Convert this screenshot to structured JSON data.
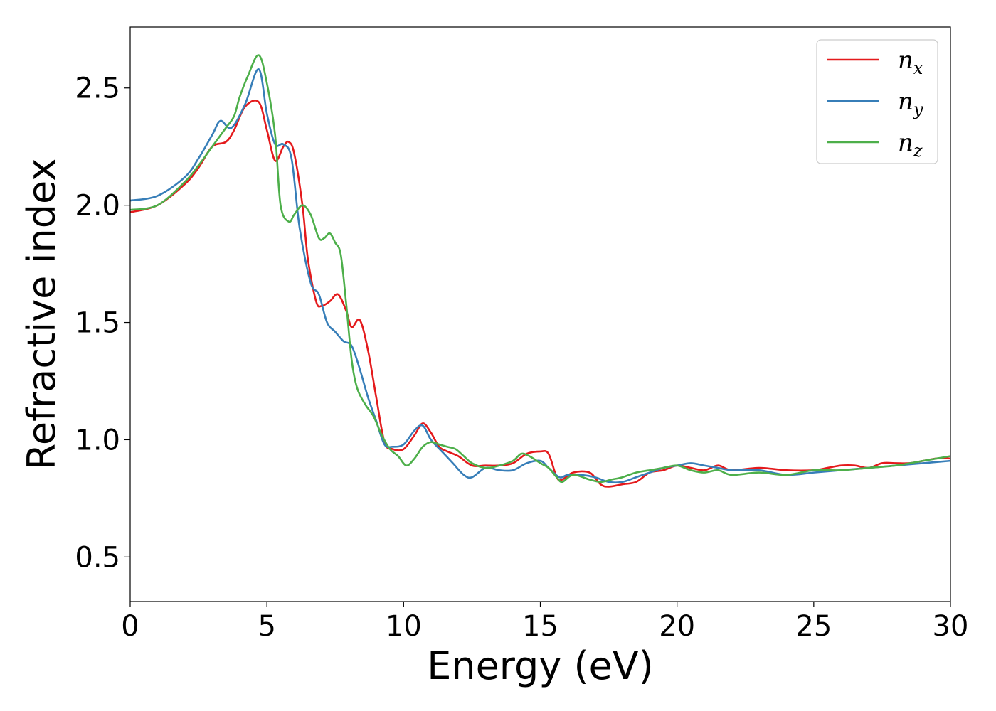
{
  "chart_data": {
    "type": "line",
    "title": "",
    "xlabel": "Energy (eV)",
    "ylabel": "Refractive index",
    "xlim": [
      0,
      30
    ],
    "ylim": [
      0.31,
      2.76
    ],
    "xticks": [
      0,
      5,
      10,
      15,
      20,
      25,
      30
    ],
    "yticks": [
      0.5,
      1.0,
      1.5,
      2.0,
      2.5
    ],
    "xtick_labels": [
      "0",
      "5",
      "10",
      "15",
      "20",
      "25",
      "30"
    ],
    "ytick_labels": [
      "0.5",
      "1.0",
      "1.5",
      "2.0",
      "2.5"
    ],
    "grid": false,
    "legend_position": "top-right",
    "series": [
      {
        "name": "n",
        "subscript": "x",
        "color": "#e41a1c",
        "x": [
          0,
          1,
          2,
          2.5,
          3,
          3.5,
          3.8,
          4.2,
          4.7,
          5.0,
          5.3,
          5.6,
          5.8,
          6.0,
          6.3,
          6.5,
          6.8,
          7.0,
          7.3,
          7.6,
          7.9,
          8.1,
          8.4,
          8.7,
          9.0,
          9.3,
          9.6,
          10.0,
          10.4,
          10.7,
          11.0,
          11.3,
          11.6,
          12.0,
          12.5,
          13.0,
          13.5,
          14.0,
          14.5,
          15.0,
          15.3,
          15.6,
          15.8,
          16.2,
          16.8,
          17.2,
          17.5,
          18.0,
          18.5,
          19.0,
          19.5,
          20.0,
          20.5,
          21.0,
          21.5,
          22.0,
          23.0,
          24.0,
          25.0,
          25.5,
          26.0,
          26.5,
          27.0,
          27.5,
          28.0,
          28.5,
          29.0,
          29.5,
          30.0
        ],
        "y": [
          1.97,
          2.0,
          2.09,
          2.16,
          2.25,
          2.27,
          2.32,
          2.42,
          2.44,
          2.32,
          2.19,
          2.25,
          2.27,
          2.22,
          2.0,
          1.77,
          1.59,
          1.57,
          1.59,
          1.62,
          1.55,
          1.48,
          1.51,
          1.38,
          1.18,
          0.99,
          0.96,
          0.96,
          1.02,
          1.07,
          1.03,
          0.97,
          0.95,
          0.93,
          0.89,
          0.89,
          0.89,
          0.9,
          0.94,
          0.95,
          0.94,
          0.84,
          0.83,
          0.86,
          0.86,
          0.81,
          0.8,
          0.81,
          0.82,
          0.86,
          0.87,
          0.89,
          0.88,
          0.87,
          0.89,
          0.87,
          0.88,
          0.87,
          0.87,
          0.88,
          0.89,
          0.89,
          0.88,
          0.9,
          0.9,
          0.9,
          0.91,
          0.92,
          0.92
        ]
      },
      {
        "name": "n",
        "subscript": "y",
        "color": "#377eb8",
        "x": [
          0,
          1,
          2,
          2.5,
          3,
          3.3,
          3.7,
          4.2,
          4.7,
          5.0,
          5.3,
          5.6,
          5.9,
          6.2,
          6.6,
          6.9,
          7.2,
          7.5,
          7.8,
          8.1,
          8.4,
          8.7,
          9.0,
          9.3,
          9.6,
          10.0,
          10.4,
          10.7,
          11.0,
          11.4,
          11.8,
          12.2,
          12.5,
          13.0,
          13.5,
          14.0,
          14.5,
          15.0,
          15.3,
          15.7,
          16.0,
          16.5,
          17.0,
          17.5,
          18.0,
          18.5,
          19.0,
          19.5,
          20.0,
          20.5,
          21.0,
          21.5,
          22.0,
          23.0,
          24.0,
          25.0,
          26.0,
          27.0,
          28.0,
          29.0,
          30.0
        ],
        "y": [
          2.02,
          2.04,
          2.12,
          2.2,
          2.3,
          2.36,
          2.33,
          2.43,
          2.58,
          2.39,
          2.26,
          2.26,
          2.2,
          1.9,
          1.67,
          1.62,
          1.5,
          1.46,
          1.42,
          1.4,
          1.3,
          1.18,
          1.08,
          0.98,
          0.97,
          0.98,
          1.04,
          1.06,
          1.0,
          0.95,
          0.9,
          0.85,
          0.84,
          0.88,
          0.87,
          0.87,
          0.9,
          0.91,
          0.88,
          0.84,
          0.85,
          0.85,
          0.84,
          0.82,
          0.82,
          0.84,
          0.86,
          0.88,
          0.89,
          0.9,
          0.89,
          0.88,
          0.87,
          0.87,
          0.85,
          0.86,
          0.87,
          0.88,
          0.89,
          0.9,
          0.91
        ]
      },
      {
        "name": "n",
        "subscript": "z",
        "color": "#4daf4a",
        "x": [
          0,
          1,
          2,
          2.5,
          3,
          3.5,
          3.8,
          4.0,
          4.3,
          4.7,
          5.0,
          5.3,
          5.5,
          5.8,
          6.0,
          6.3,
          6.6,
          6.9,
          7.1,
          7.3,
          7.5,
          7.7,
          7.9,
          8.1,
          8.3,
          8.6,
          8.9,
          9.2,
          9.5,
          9.8,
          10.1,
          10.4,
          10.7,
          11.0,
          11.3,
          11.6,
          11.9,
          12.2,
          12.5,
          13.0,
          13.5,
          14.0,
          14.3,
          14.6,
          15.0,
          15.3,
          15.6,
          15.8,
          16.2,
          16.8,
          17.2,
          17.6,
          18.0,
          18.5,
          19.0,
          19.5,
          20.0,
          20.5,
          21.0,
          21.5,
          22.0,
          23.0,
          24.0,
          25.0,
          26.0,
          27.0,
          28.0,
          29.0,
          29.5,
          30.0
        ],
        "y": [
          1.98,
          2.0,
          2.1,
          2.17,
          2.25,
          2.33,
          2.38,
          2.46,
          2.55,
          2.64,
          2.52,
          2.3,
          2.0,
          1.93,
          1.96,
          2.0,
          1.96,
          1.86,
          1.86,
          1.88,
          1.84,
          1.79,
          1.58,
          1.34,
          1.22,
          1.15,
          1.1,
          1.02,
          0.96,
          0.93,
          0.89,
          0.92,
          0.97,
          0.99,
          0.98,
          0.97,
          0.96,
          0.93,
          0.9,
          0.88,
          0.89,
          0.91,
          0.94,
          0.93,
          0.9,
          0.88,
          0.84,
          0.82,
          0.85,
          0.83,
          0.82,
          0.83,
          0.84,
          0.86,
          0.87,
          0.88,
          0.89,
          0.87,
          0.86,
          0.87,
          0.85,
          0.86,
          0.85,
          0.87,
          0.87,
          0.88,
          0.89,
          0.91,
          0.92,
          0.93
        ]
      }
    ]
  }
}
